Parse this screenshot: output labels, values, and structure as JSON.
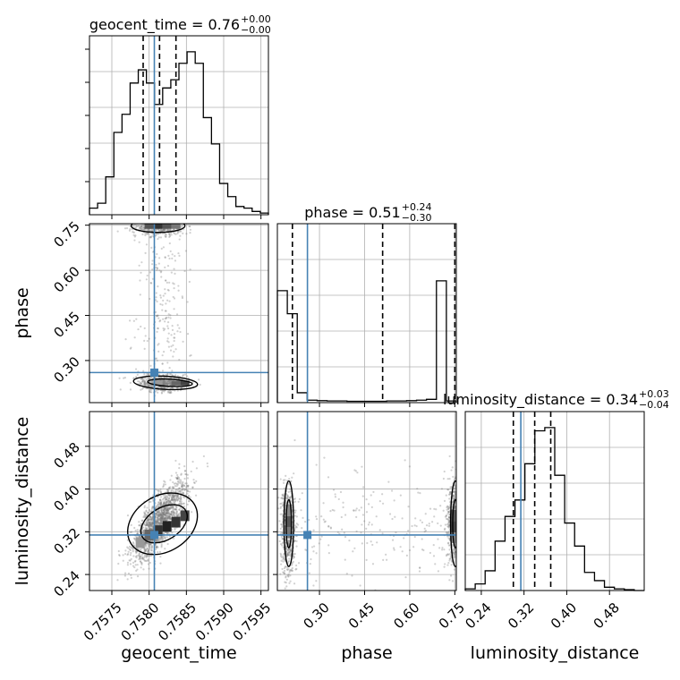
{
  "chart_data": {
    "type": "corner",
    "parameters": [
      "geocent_time",
      "phase",
      "luminosity_distance"
    ],
    "truths": [
      0.75807,
      0.26,
      0.314
    ],
    "titles": [
      {
        "param": "geocent_time",
        "value": "0.76",
        "plus": "+0.00",
        "minus": "−0.00"
      },
      {
        "param": "phase",
        "value": "0.51",
        "plus": "+0.24",
        "minus": "−0.30"
      },
      {
        "param": "luminosity_distance",
        "value": "0.34",
        "plus": "+0.03",
        "minus": "−0.04"
      }
    ],
    "quantiles": {
      "geocent_time": [
        0.75792,
        0.75814,
        0.75836
      ],
      "phase": [
        0.21,
        0.51,
        0.75
      ],
      "luminosity_distance": [
        0.3,
        0.34,
        0.37
      ]
    },
    "ranges": {
      "geocent_time": [
        0.7572,
        0.7596
      ],
      "phase": [
        0.16,
        0.755
      ],
      "luminosity_distance": [
        0.21,
        0.545
      ]
    },
    "ticks": {
      "geocent_time": [
        "0.7575",
        "0.7580",
        "0.7585",
        "0.7590",
        "0.7595"
      ],
      "phase": [
        "0.30",
        "0.45",
        "0.60",
        "0.75"
      ],
      "luminosity_distance": [
        "0.24",
        "0.32",
        "0.40",
        "0.48"
      ]
    },
    "hist_geocent_time": [
      0.04,
      0.07,
      0.23,
      0.5,
      0.61,
      0.8,
      0.88,
      0.8,
      0.67,
      0.77,
      0.82,
      0.92,
      0.99,
      0.92,
      0.59,
      0.43,
      0.19,
      0.11,
      0.05,
      0.04,
      0.02,
      0.01
    ],
    "hist_phase": [
      0.68,
      0.54,
      0.06,
      0.015,
      0.012,
      0.01,
      0.01,
      0.008,
      0.008,
      0.008,
      0.008,
      0.01,
      0.01,
      0.012,
      0.015,
      0.02,
      0.74,
      0.01
    ],
    "hist_luminosity_distance": [
      0.01,
      0.04,
      0.12,
      0.3,
      0.45,
      0.55,
      0.77,
      0.97,
      0.99,
      0.7,
      0.41,
      0.27,
      0.11,
      0.06,
      0.02,
      0.01,
      0.005,
      0.0
    ],
    "grid": true
  }
}
